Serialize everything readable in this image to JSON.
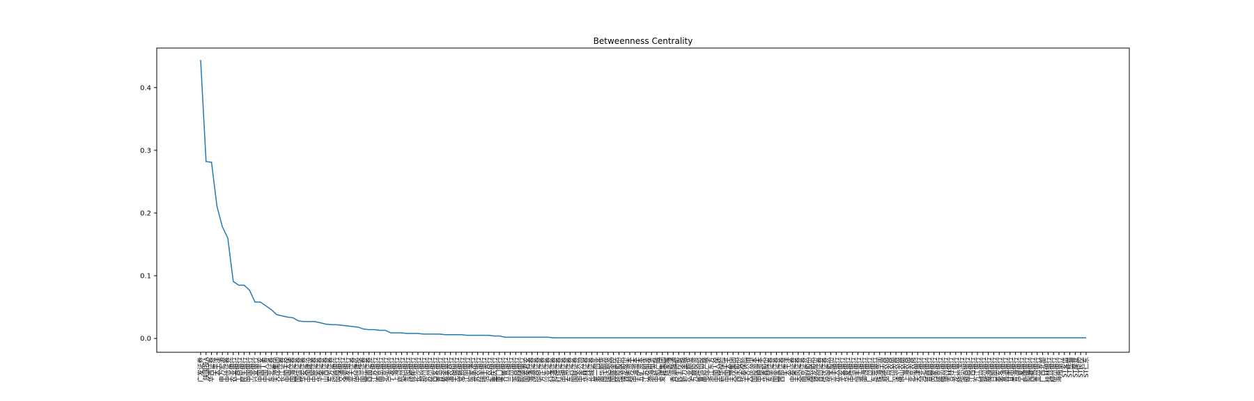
{
  "chart_data": {
    "type": "line",
    "title": "Betweenness Centrality",
    "xlabel": "",
    "ylabel": "",
    "ylim": [
      -0.022,
      0.463
    ],
    "yticks": [
      0.0,
      0.1,
      0.2,
      0.3,
      0.4
    ],
    "ytick_labels": [
      "0.0",
      "0.1",
      "0.2",
      "0.3",
      "0.4"
    ],
    "grid": false,
    "legend": "none",
    "colors": {
      "line": "#1f77b4",
      "axes": "#000000",
      "background": "#ffffff"
    },
    "categories": [
      "广发证券",
      "陕国投A",
      "华西证券",
      "太平洋",
      "申万宏源",
      "中信证券",
      "农业银行",
      "工商银行",
      "民生银行",
      "中国银行",
      "兴业银行",
      "中国平安",
      "中国人寿",
      "东北证券",
      "天茂集团",
      "长江证券",
      "中国太保",
      "国海证券",
      "国信证券",
      "华安证券",
      "中国建设",
      "中原证券",
      "华泰证券",
      "山西证券",
      "东方证券",
      "招商银行",
      "交通银行",
      "浦发银行",
      "光大证券",
      "中信建投",
      "国元证券",
      "西南证券",
      "江苏银行",
      "南京银行",
      "北京银行",
      "宁波银行",
      "上海银行",
      "杭州银行",
      "贵阳银行",
      "成都银行",
      "长沙银行",
      "郑州银行",
      "苏州银行",
      "西安银行",
      "青岛银行",
      "紫金银行",
      "渝农商行",
      "无锡银行",
      "常熟银行",
      "江阴银行",
      "张家港行",
      "苏农银行",
      "瑞丰银行",
      "沪农商行",
      "重庆银行",
      "厦门银行",
      "齐鲁银行",
      "兰州银行",
      "浙商银行",
      "邮储银行",
      "国泰君安",
      "海通证券",
      "招商证券",
      "方正证券",
      "兴业证券",
      "财通证券",
      "红塔证券",
      "中银证券",
      "东兴证券",
      "国联证券",
      "中金公司",
      "华林证券",
      "长城证券",
      "第一创业",
      "南华期货",
      "瑞达期货",
      "国盛金控",
      "哈投股份",
      "锦龙股份",
      "越秀资本",
      "中油资本",
      "五矿资本",
      "江苏租赁",
      "渤海租赁",
      "中航产融",
      "爱建集团",
      "陆家嘴",
      "香溢融通",
      "民生控股",
      "新力金融",
      "弘业期货",
      "九鼎投资",
      "鲁信创投",
      "电投产融",
      "浙江东方",
      "中国人保",
      "新华保险",
      "中国太平",
      "天茂集团",
      "西水股份",
      "华泰保险",
      "大众公用",
      "国投资本",
      "中粮资本",
      "华鑫股份",
      "东吴证券",
      "国金证券",
      "西部证券",
      "太平洋",
      "中泰证券",
      "天风证券",
      "南京证券",
      "湘财股份",
      "锦龙股份",
      "首创证券",
      "信达证券",
      "华宝股份",
      "光大银行",
      "平安银行",
      "华夏银行",
      "中信银行",
      "恒丰银行",
      "渤海银行",
      "广州银行",
      "东莞银行",
      "珠海华润",
      "顺德农商",
      "广州农商",
      "深圳农商",
      "佛山农商",
      "上海农商",
      "北京农商",
      "天津银行",
      "河北银行",
      "晋商银行",
      "内蒙银行",
      "盛京银行",
      "锦州银行",
      "吉林银行",
      "龙江银行",
      "哈尔滨行",
      "徽商银行",
      "江西银行",
      "九江银行",
      "赣州银行",
      "威海银行",
      "日照银行",
      "泰安银行",
      "富滇银行",
      "甘肃银行",
      "青海银行",
      "宁夏银行",
      "新疆银行",
      "西藏银行",
      "贵州银行",
      "广西北部",
      "桂林银行",
      "柳州银行",
      "海南银行",
      "ST安信",
      "ST熊猫",
      "ST摩登",
      "ST民控",
      "ST仁东"
    ],
    "values": [
      0.444,
      0.282,
      0.281,
      0.211,
      0.178,
      0.16,
      0.091,
      0.085,
      0.085,
      0.077,
      0.058,
      0.058,
      0.052,
      0.046,
      0.038,
      0.036,
      0.034,
      0.033,
      0.028,
      0.027,
      0.027,
      0.027,
      0.025,
      0.023,
      0.022,
      0.022,
      0.021,
      0.02,
      0.019,
      0.018,
      0.015,
      0.014,
      0.014,
      0.013,
      0.013,
      0.009,
      0.009,
      0.009,
      0.008,
      0.008,
      0.008,
      0.007,
      0.007,
      0.007,
      0.007,
      0.006,
      0.006,
      0.006,
      0.006,
      0.005,
      0.005,
      0.005,
      0.005,
      0.005,
      0.004,
      0.004,
      0.002,
      0.002,
      0.002,
      0.002,
      0.002,
      0.002,
      0.002,
      0.002,
      0.002,
      0.001,
      0.001,
      0.001,
      0.001,
      0.001,
      0.001,
      0.001,
      0.001,
      0.001,
      0.001,
      0.001,
      0.001,
      0.001,
      0.001,
      0.001,
      0.001,
      0.001,
      0.001,
      0.001,
      0.001,
      0.001,
      0.001,
      0.001,
      0.001,
      0.001,
      0.001,
      0.001,
      0.001,
      0.001,
      0.001,
      0.001,
      0.001,
      0.001,
      0.001,
      0.001,
      0.001,
      0.001,
      0.001,
      0.001,
      0.001,
      0.001,
      0.001,
      0.001,
      0.001,
      0.001,
      0.001,
      0.001,
      0.001,
      0.001,
      0.001,
      0.001,
      0.001,
      0.001,
      0.001,
      0.001,
      0.001,
      0.001,
      0.001,
      0.001,
      0.001,
      0.001,
      0.001,
      0.001,
      0.001,
      0.001,
      0.001,
      0.001,
      0.001,
      0.001,
      0.001,
      0.001,
      0.001,
      0.001,
      0.001,
      0.001,
      0.001,
      0.001,
      0.001,
      0.001,
      0.001,
      0.001,
      0.001,
      0.001,
      0.001,
      0.001,
      0.001,
      0.001,
      0.001,
      0.001,
      0.001,
      0.001,
      0.001,
      0.001,
      0.001,
      0.001,
      0.001,
      0.001,
      0.001,
      0.001
    ]
  }
}
